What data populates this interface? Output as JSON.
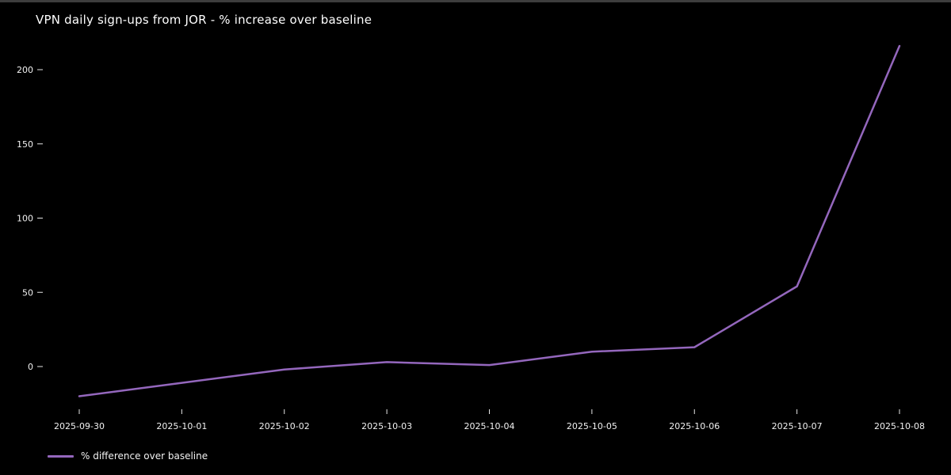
{
  "window": {
    "background": "#000000",
    "top_edge_color": "#3d3d3d"
  },
  "chart_data": {
    "type": "line",
    "title": "VPN daily sign-ups from JOR - % increase over baseline",
    "x": [
      "2025-09-30",
      "2025-10-01",
      "2025-10-02",
      "2025-10-03",
      "2025-10-04",
      "2025-10-05",
      "2025-10-06",
      "2025-10-07",
      "2025-10-08"
    ],
    "series": [
      {
        "name": "% difference over baseline",
        "color": "#9467bd",
        "values": [
          -20,
          -11,
          -2,
          3,
          1,
          10,
          13,
          54,
          216
        ]
      }
    ],
    "yticks": [
      0,
      50,
      100,
      150,
      200
    ],
    "ylim": [
      -32,
      228
    ],
    "xlabel": "",
    "ylabel": "",
    "grid": false,
    "legend": {
      "position": "lower-left",
      "entries": [
        "% difference over baseline"
      ]
    },
    "text_color": "#f2f2f2",
    "tick_color": "#e6e6e6",
    "background": "#000000"
  }
}
